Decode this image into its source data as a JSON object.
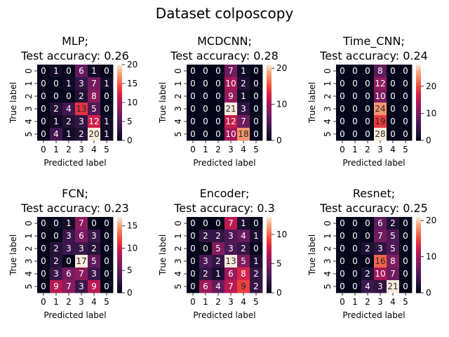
{
  "suptitle": "Dataset colposcopy",
  "chart_data": [
    {
      "type": "heatmap",
      "title_line1": "MLP;",
      "title_line2": "Test accuracy: 0.26",
      "xlabel": "Predicted label",
      "ylabel": "True label",
      "x_ticks": [
        "0",
        "1",
        "2",
        "3",
        "4",
        "5"
      ],
      "y_ticks": [
        "0",
        "1",
        "2",
        "3",
        "4",
        "5"
      ],
      "colorbar_ticks": [
        0,
        5,
        10,
        15,
        20
      ],
      "vmax": 20,
      "matrix": [
        [
          0,
          1,
          0,
          6,
          1,
          0
        ],
        [
          0,
          0,
          1,
          3,
          7,
          1
        ],
        [
          0,
          0,
          0,
          2,
          8,
          0
        ],
        [
          0,
          2,
          4,
          13,
          5,
          0
        ],
        [
          0,
          1,
          2,
          3,
          12,
          1
        ],
        [
          0,
          4,
          1,
          2,
          20,
          1
        ]
      ]
    },
    {
      "type": "heatmap",
      "title_line1": "MCDCNN;",
      "title_line2": "Test accuracy: 0.28",
      "xlabel": "Predicted label",
      "ylabel": "True label",
      "x_ticks": [
        "0",
        "1",
        "2",
        "3",
        "4",
        "5"
      ],
      "y_ticks": [
        "0",
        "1",
        "2",
        "3",
        "4",
        "5"
      ],
      "colorbar_ticks": [
        0,
        10,
        20
      ],
      "vmax": 21,
      "matrix": [
        [
          0,
          0,
          0,
          7,
          1,
          0
        ],
        [
          0,
          0,
          0,
          10,
          2,
          0
        ],
        [
          0,
          0,
          0,
          9,
          1,
          0
        ],
        [
          0,
          0,
          0,
          21,
          3,
          0
        ],
        [
          0,
          0,
          0,
          12,
          7,
          0
        ],
        [
          0,
          0,
          0,
          10,
          18,
          0
        ]
      ]
    },
    {
      "type": "heatmap",
      "title_line1": "Time_CNN;",
      "title_line2": "Test accuracy: 0.24",
      "xlabel": "Predicted label",
      "ylabel": "True label",
      "x_ticks": [
        "0",
        "1",
        "2",
        "3",
        "4",
        "5"
      ],
      "y_ticks": [
        "0",
        "1",
        "2",
        "3",
        "4",
        "5"
      ],
      "colorbar_ticks": [
        0,
        10,
        20
      ],
      "vmax": 28,
      "matrix": [
        [
          0,
          0,
          0,
          8,
          0,
          0
        ],
        [
          0,
          0,
          0,
          12,
          0,
          0
        ],
        [
          0,
          0,
          0,
          10,
          0,
          0
        ],
        [
          0,
          0,
          0,
          24,
          0,
          0
        ],
        [
          0,
          0,
          0,
          19,
          0,
          0
        ],
        [
          0,
          0,
          0,
          28,
          0,
          0
        ]
      ]
    },
    {
      "type": "heatmap",
      "title_line1": "FCN;",
      "title_line2": "Test accuracy: 0.23",
      "xlabel": "Predicted label",
      "ylabel": "True label",
      "x_ticks": [
        "0",
        "1",
        "2",
        "3",
        "4",
        "5"
      ],
      "y_ticks": [
        "0",
        "1",
        "2",
        "3",
        "4",
        "5"
      ],
      "colorbar_ticks": [
        0,
        5,
        10,
        15
      ],
      "vmax": 17,
      "matrix": [
        [
          0,
          0,
          1,
          7,
          0,
          0
        ],
        [
          0,
          0,
          3,
          6,
          3,
          0
        ],
        [
          0,
          2,
          3,
          3,
          2,
          0
        ],
        [
          0,
          2,
          0,
          17,
          5,
          0
        ],
        [
          0,
          3,
          6,
          7,
          3,
          0
        ],
        [
          0,
          9,
          7,
          3,
          9,
          0
        ]
      ]
    },
    {
      "type": "heatmap",
      "title_line1": "Encoder;",
      "title_line2": "Test accuracy: 0.3",
      "xlabel": "Predicted label",
      "ylabel": "True label",
      "x_ticks": [
        "0",
        "1",
        "2",
        "3",
        "4",
        "5"
      ],
      "y_ticks": [
        "0",
        "1",
        "2",
        "3",
        "4",
        "5"
      ],
      "colorbar_ticks": [
        0,
        5,
        10
      ],
      "vmax": 13,
      "matrix": [
        [
          0,
          0,
          0,
          7,
          1,
          0
        ],
        [
          0,
          2,
          2,
          3,
          4,
          1
        ],
        [
          0,
          0,
          5,
          3,
          2,
          0
        ],
        [
          0,
          3,
          2,
          13,
          5,
          1
        ],
        [
          0,
          2,
          1,
          6,
          8,
          2
        ],
        [
          0,
          6,
          4,
          7,
          9,
          2
        ]
      ]
    },
    {
      "type": "heatmap",
      "title_line1": "Resnet;",
      "title_line2": "Test accuracy: 0.25",
      "xlabel": "Predicted label",
      "ylabel": "True label",
      "x_ticks": [
        "0",
        "1",
        "2",
        "3",
        "4",
        "5"
      ],
      "y_ticks": [
        "0",
        "1",
        "2",
        "3",
        "4",
        "5"
      ],
      "colorbar_ticks": [
        0,
        10,
        20
      ],
      "vmax": 21,
      "matrix": [
        [
          0,
          0,
          0,
          6,
          2,
          0
        ],
        [
          0,
          0,
          0,
          7,
          5,
          0
        ],
        [
          0,
          0,
          2,
          3,
          5,
          0
        ],
        [
          0,
          0,
          0,
          16,
          8,
          0
        ],
        [
          0,
          0,
          2,
          10,
          7,
          0
        ],
        [
          0,
          0,
          4,
          3,
          21,
          0
        ]
      ]
    }
  ]
}
